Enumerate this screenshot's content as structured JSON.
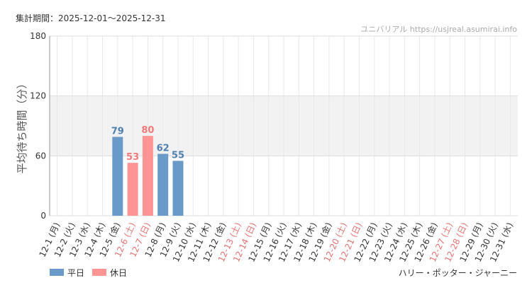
{
  "header": {
    "period": "集計期間：2025-12-01〜2025-12-31",
    "source": "ユニバリアル https://usjreal.asumirai.info",
    "attraction": "ハリー・ポッター・ジャーニー"
  },
  "chart_data": {
    "type": "bar",
    "y_label": "平均待ち時間（分）",
    "categories": [
      "12-1 (月)",
      "12-2 (火)",
      "12-3 (水)",
      "12-4 (木)",
      "12-5 (金)",
      "12-6 (土)",
      "12-7 (日)",
      "12-8 (月)",
      "12-9 (火)",
      "12-10 (水)",
      "12-11 (木)",
      "12-12 (金)",
      "12-13 (土)",
      "12-14 (日)",
      "12-15 (月)",
      "12-16 (火)",
      "12-17 (水)",
      "12-18 (木)",
      "12-19 (金)",
      "12-20 (土)",
      "12-21 (日)",
      "12-22 (月)",
      "12-23 (火)",
      "12-24 (水)",
      "12-25 (木)",
      "12-26 (金)",
      "12-27 (土)",
      "12-28 (日)",
      "12-29 (月)",
      "12-30 (火)",
      "12-31 (水)"
    ],
    "category_label_colors": [
      "#333",
      "#333",
      "#333",
      "#333",
      "#333",
      "#e57373",
      "#e57373",
      "#333",
      "#333",
      "#333",
      "#333",
      "#333",
      "#e57373",
      "#e57373",
      "#333",
      "#333",
      "#333",
      "#333",
      "#333",
      "#e57373",
      "#e57373",
      "#333",
      "#333",
      "#333",
      "#333",
      "#333",
      "#e57373",
      "#e57373",
      "#333",
      "#333",
      "#333"
    ],
    "series": [
      {
        "name": "平日",
        "color": "#6a9ac8",
        "label_color": "#4f7fae",
        "values": [
          null,
          null,
          null,
          null,
          79,
          null,
          null,
          62,
          55,
          null,
          null,
          null,
          null,
          null,
          null,
          null,
          null,
          null,
          null,
          null,
          null,
          null,
          null,
          null,
          null,
          null,
          null,
          null,
          null,
          null,
          null
        ]
      },
      {
        "name": "休日",
        "color": "#ff9494",
        "label_color": "#f07a7a",
        "values": [
          null,
          null,
          null,
          null,
          null,
          53,
          80,
          null,
          null,
          null,
          null,
          null,
          null,
          null,
          null,
          null,
          null,
          null,
          null,
          null,
          null,
          null,
          null,
          null,
          null,
          null,
          null,
          null,
          null,
          null,
          null
        ]
      }
    ],
    "ylim": [
      0,
      180
    ],
    "yticks": [
      0,
      60,
      120,
      180
    ],
    "shaded_band": [
      60,
      120
    ],
    "grid": true
  }
}
